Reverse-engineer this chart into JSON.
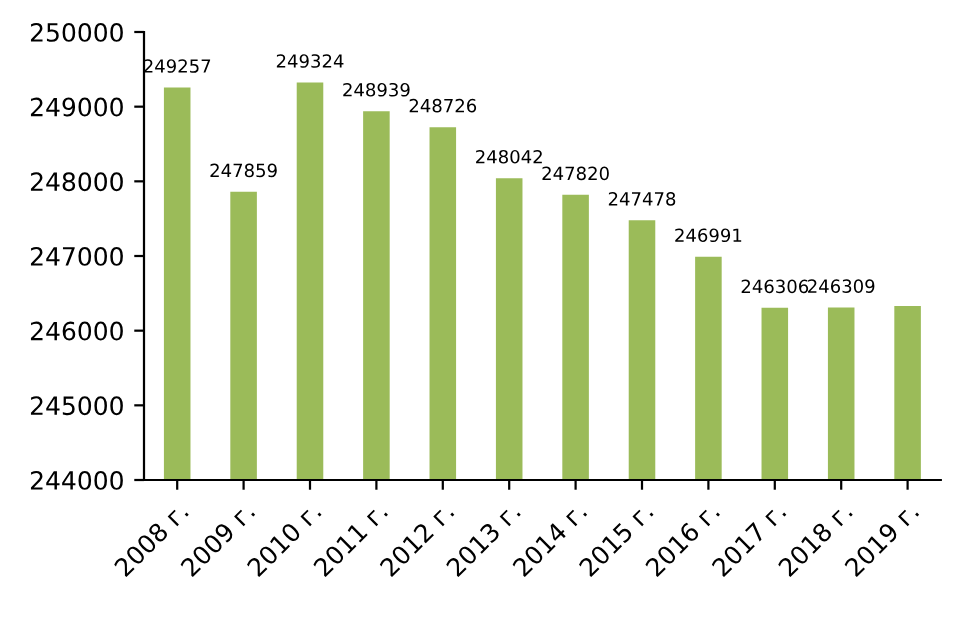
{
  "chart_data": {
    "type": "bar",
    "categories": [
      "2008 г.",
      "2009 г.",
      "2010 г.",
      "2011 г.",
      "2012 г.",
      "2013 г.",
      "2014 г.",
      "2015 г.",
      "2016 г.",
      "2017 г.",
      "2018 г.",
      "2019 г."
    ],
    "values": [
      249257,
      247859,
      249324,
      248939,
      248726,
      248042,
      247820,
      247478,
      246991,
      246306,
      246309,
      246330
    ],
    "value_labels": [
      "249257",
      "247859",
      "249324",
      "248939",
      "248726",
      "248042",
      "247820",
      "247478",
      "246991",
      "246306",
      "246309",
      null
    ],
    "color": "#9bbb59",
    "ylim": [
      244000,
      250000
    ],
    "yticks": [
      244000,
      245000,
      246000,
      247000,
      248000,
      249000,
      250000
    ],
    "grid": false,
    "legend": false
  }
}
